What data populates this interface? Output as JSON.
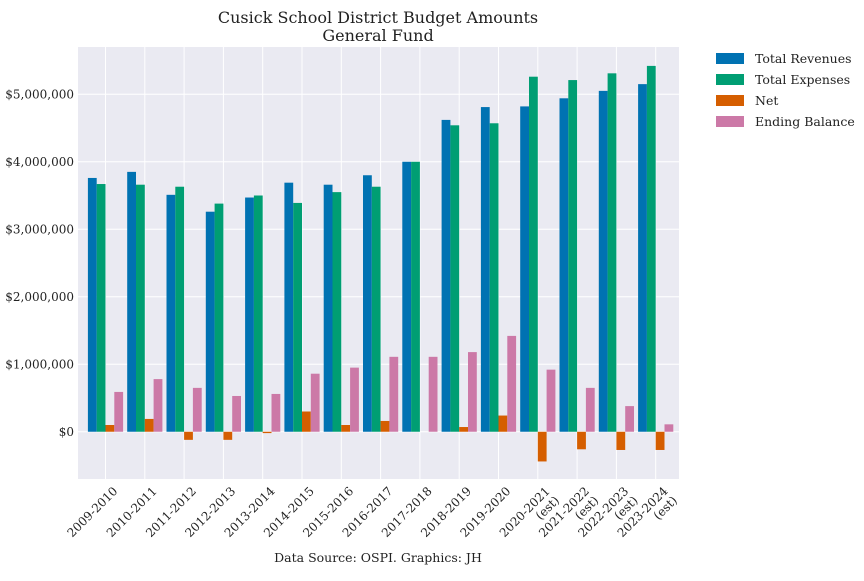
{
  "chart_data": {
    "type": "bar",
    "title": "Cusick School District Budget Amounts",
    "subtitle": "General Fund",
    "xlabel": "",
    "ylabel": "",
    "footer": "Data Source: OSPI. Graphics: JH",
    "categories": [
      "2009-2010",
      "2010-2011",
      "2011-2012",
      "2012-2013",
      "2013-2014",
      "2014-2015",
      "2015-2016",
      "2016-2017",
      "2017-2018",
      "2018-2019",
      "2019-2020",
      "2020-2021\n(est)",
      "2021-2022\n(est)",
      "2022-2023\n(est)",
      "2023-2024\n(est)"
    ],
    "ylim": [
      -700000,
      5700000
    ],
    "yticks": [
      0,
      1000000,
      2000000,
      3000000,
      4000000,
      5000000
    ],
    "ytick_labels": [
      "$0",
      "$1,000,000",
      "$2,000,000",
      "$3,000,000",
      "$4,000,000",
      "$5,000,000"
    ],
    "grid": true,
    "legend_position": "outside-top-right",
    "series": [
      {
        "name": "Total Revenues",
        "color": "#0072b2",
        "values": [
          3760000,
          3850000,
          3510000,
          3260000,
          3470000,
          3690000,
          3660000,
          3800000,
          4000000,
          4620000,
          4810000,
          4820000,
          4940000,
          5050000,
          5150000
        ]
      },
      {
        "name": "Total Expenses",
        "color": "#009e73",
        "values": [
          3670000,
          3660000,
          3630000,
          3380000,
          3500000,
          3390000,
          3550000,
          3630000,
          4000000,
          4540000,
          4570000,
          5260000,
          5210000,
          5310000,
          5420000
        ]
      },
      {
        "name": "Net",
        "color": "#d55e00",
        "values": [
          100000,
          190000,
          -120000,
          -120000,
          -20000,
          300000,
          100000,
          160000,
          0,
          70000,
          240000,
          -440000,
          -260000,
          -270000,
          -270000
        ]
      },
      {
        "name": "Ending Balance",
        "color": "#cc79a7",
        "values": [
          590000,
          780000,
          650000,
          530000,
          560000,
          860000,
          950000,
          1110000,
          1110000,
          1180000,
          1420000,
          920000,
          650000,
          380000,
          110000
        ]
      }
    ]
  }
}
